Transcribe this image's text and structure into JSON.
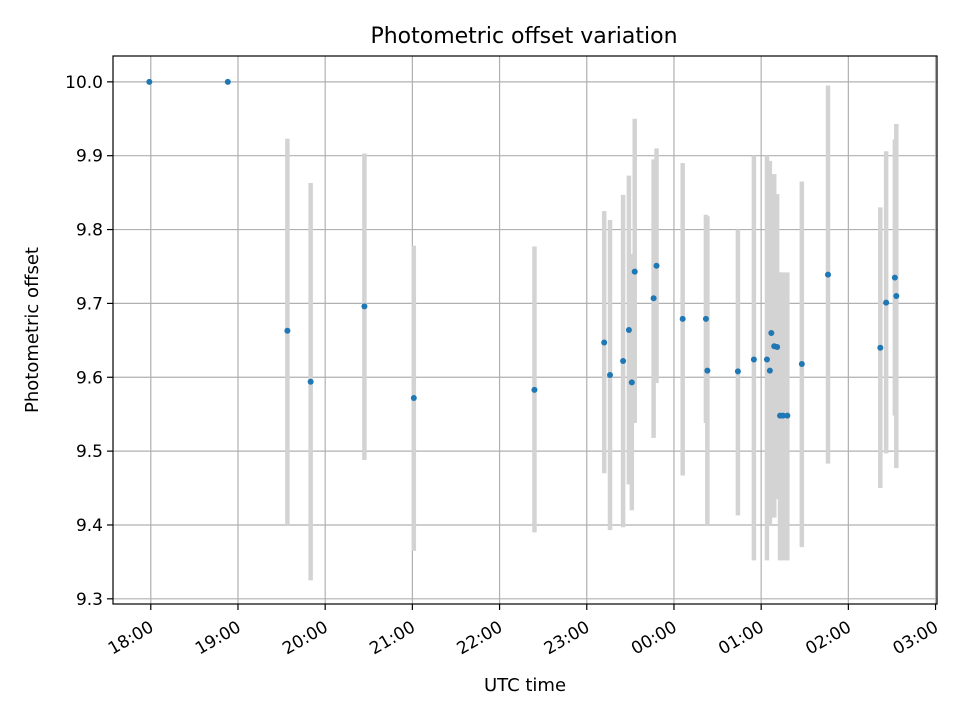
{
  "chart_data": {
    "type": "scatter",
    "title": "Photometric offset variation",
    "xlabel": "UTC time",
    "ylabel": "Photometric offset",
    "xlim": [
      "17:34",
      "03:01"
    ],
    "ylim": [
      9.293,
      10.035
    ],
    "x_ticks": [
      "18:00",
      "19:00",
      "20:00",
      "21:00",
      "22:00",
      "23:00",
      "00:00",
      "01:00",
      "02:00",
      "03:00"
    ],
    "y_ticks": [
      "9.3",
      "9.4",
      "9.5",
      "9.6",
      "9.7",
      "9.8",
      "9.9",
      "10.0"
    ],
    "grid": true,
    "colors": {
      "points": "#1f77b4",
      "errorbars": "#d3d3d3",
      "grid": "#b0b0b0"
    },
    "points": [
      {
        "x": "17:59",
        "y": 10.0
      },
      {
        "x": "18:53",
        "y": 10.0
      },
      {
        "x": "19:34",
        "y": 9.663,
        "err": [
          9.4,
          9.923
        ]
      },
      {
        "x": "19:50",
        "y": 9.594,
        "err": [
          9.325,
          9.863
        ]
      },
      {
        "x": "20:27",
        "y": 9.696,
        "err": [
          9.488,
          9.903
        ]
      },
      {
        "x": "21:01",
        "y": 9.572,
        "err": [
          9.365,
          9.778
        ]
      },
      {
        "x": "22:24",
        "y": 9.583,
        "err": [
          9.39,
          9.777
        ]
      },
      {
        "x": "23:12",
        "y": 9.647,
        "err": [
          9.47,
          9.825
        ]
      },
      {
        "x": "23:16",
        "y": 9.603,
        "err": [
          9.393,
          9.813
        ]
      },
      {
        "x": "23:25",
        "y": 9.622,
        "err": [
          9.397,
          9.847
        ]
      },
      {
        "x": "23:29",
        "y": 9.664,
        "err": [
          9.455,
          9.873
        ]
      },
      {
        "x": "23:31",
        "y": 9.593,
        "err": [
          9.42,
          9.767
        ]
      },
      {
        "x": "23:33",
        "y": 9.743,
        "err": [
          9.538,
          9.95
        ]
      },
      {
        "x": "23:46",
        "y": 9.707,
        "err": [
          9.518,
          9.895
        ]
      },
      {
        "x": "23:48",
        "y": 9.751,
        "err": [
          9.592,
          9.91
        ]
      },
      {
        "x": "00:06",
        "y": 9.679,
        "err": [
          9.467,
          9.89
        ]
      },
      {
        "x": "00:22",
        "y": 9.679,
        "err": [
          9.538,
          9.82
        ]
      },
      {
        "x": "00:23",
        "y": 9.609,
        "err": [
          9.4,
          9.818
        ]
      },
      {
        "x": "00:44",
        "y": 9.608,
        "err": [
          9.413,
          9.8
        ]
      },
      {
        "x": "00:55",
        "y": 9.624,
        "err": [
          9.352,
          9.9
        ]
      },
      {
        "x": "01:04",
        "y": 9.624,
        "err": [
          9.352,
          9.9
        ]
      },
      {
        "x": "01:06",
        "y": 9.609,
        "err": [
          9.4,
          9.893
        ]
      },
      {
        "x": "01:07",
        "y": 9.66,
        "err": [
          9.41,
          9.875
        ]
      },
      {
        "x": "01:09",
        "y": 9.642,
        "err": [
          9.41,
          9.875
        ]
      },
      {
        "x": "01:11",
        "y": 9.641,
        "err": [
          9.435,
          9.848
        ]
      },
      {
        "x": "01:13",
        "y": 9.548,
        "err": [
          9.352,
          9.742
        ]
      },
      {
        "x": "01:15",
        "y": 9.548,
        "err": [
          9.352,
          9.742
        ]
      },
      {
        "x": "01:18",
        "y": 9.548,
        "err": [
          9.352,
          9.742
        ]
      },
      {
        "x": "01:28",
        "y": 9.618,
        "err": [
          9.37,
          9.865
        ]
      },
      {
        "x": "01:46",
        "y": 9.739,
        "err": [
          9.483,
          9.995
        ]
      },
      {
        "x": "02:22",
        "y": 9.64,
        "err": [
          9.45,
          9.83
        ]
      },
      {
        "x": "02:26",
        "y": 9.701,
        "err": [
          9.497,
          9.906
        ]
      },
      {
        "x": "02:32",
        "y": 9.735,
        "err": [
          9.548,
          9.922
        ]
      },
      {
        "x": "02:33",
        "y": 9.71,
        "err": [
          9.477,
          9.943
        ]
      }
    ]
  }
}
